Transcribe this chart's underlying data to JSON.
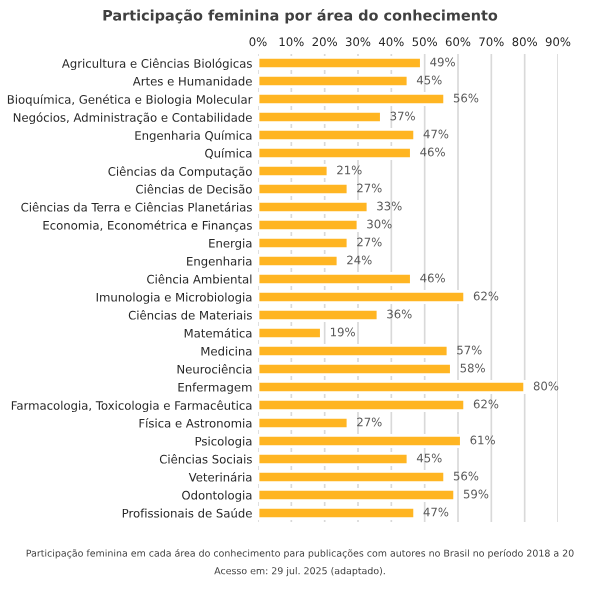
{
  "chart_data": {
    "type": "bar",
    "orientation": "horizontal",
    "title": "Participação feminina por área do conhecimento",
    "categories": [
      "Agricultura e Ciências Biológicas",
      "Artes e Humanidade",
      "Bioquímica, Genética e Biologia Molecular",
      "Negócios, Administração e Contabilidade",
      "Engenharia Química",
      "Química",
      "Ciências da Computação",
      "Ciências de Decisão",
      "Ciências da Terra e Ciências Planetárias",
      "Economia, Econométrica e Finanças",
      "Energia",
      "Engenharia",
      "Ciência Ambiental",
      "Imunologia e Microbiologia",
      "Ciências de Materiais",
      "Matemática",
      "Medicina",
      "Neurociência",
      "Enfermagem",
      "Farmacologia, Toxicologia e Farmacêutica",
      "Física e Astronomia",
      "Psicologia",
      "Ciências Sociais",
      "Veterinária",
      "Odontologia",
      "Profissionais de Saúde"
    ],
    "values": [
      49,
      45,
      56,
      37,
      47,
      46,
      21,
      27,
      33,
      30,
      27,
      24,
      46,
      62,
      36,
      19,
      57,
      58,
      80,
      62,
      27,
      61,
      45,
      56,
      59,
      47
    ],
    "value_labels": [
      "49%",
      "45%",
      "56%",
      "37%",
      "47%",
      "46%",
      "21%",
      "27%",
      "33%",
      "30%",
      "27%",
      "24%",
      "46%",
      "62%",
      "36%",
      "19%",
      "57%",
      "58%",
      "80%",
      "62%",
      "27%",
      "61%",
      "45%",
      "56%",
      "59%",
      "47%"
    ],
    "color": "#ffb522",
    "xlim": [
      0,
      90
    ],
    "xticks": [
      {
        "value": 0,
        "label": "0%"
      },
      {
        "value": 10,
        "label": "10%"
      },
      {
        "value": 20,
        "label": "20%"
      },
      {
        "value": 30,
        "label": "30%"
      },
      {
        "value": 40,
        "label": "40%"
      },
      {
        "value": 50,
        "label": "50%"
      },
      {
        "value": 60,
        "label": "60%"
      },
      {
        "value": 70,
        "label": "70%"
      },
      {
        "value": 80,
        "label": "80%"
      },
      {
        "value": 90,
        "label": "90%"
      }
    ],
    "grid": "x",
    "annotations": [
      "Participação feminina em cada área do conhecimento para publicações com autores no Brasil no período 2018 a 20",
      "Acesso em: 29 jul. 2025 (adaptado)."
    ]
  }
}
